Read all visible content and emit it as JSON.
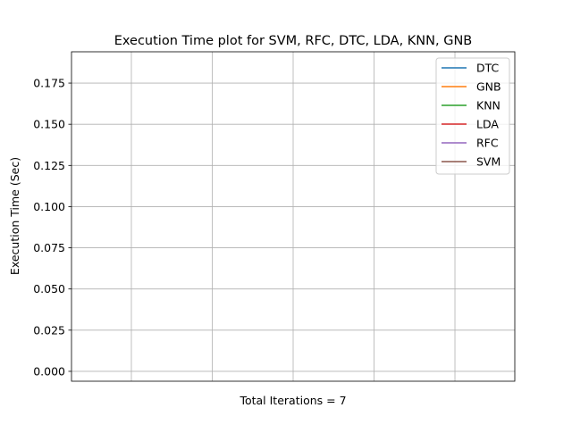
{
  "chart_data": {
    "type": "line",
    "title": "Execution Time plot for SVM, RFC, DTC, LDA, KNN, GNB",
    "xlabel": "Total Iterations = 7",
    "ylabel": "Execution Time (Sec)",
    "x_tick_labels": [],
    "y_ticks": [
      0.0,
      0.025,
      0.05,
      0.075,
      0.1,
      0.125,
      0.15,
      0.175
    ],
    "y_tick_labels": [
      "0.000",
      "0.025",
      "0.050",
      "0.075",
      "0.100",
      "0.125",
      "0.150",
      "0.175"
    ],
    "ylim": [
      -0.006,
      0.194
    ],
    "xlim": [
      -0.74,
      4.74
    ],
    "x_gridlines": [
      0,
      1,
      2,
      3,
      4
    ],
    "grid": true,
    "legend_position": "top-right",
    "series": [
      {
        "name": "DTC",
        "color": "#1f77b4",
        "x": [],
        "y": []
      },
      {
        "name": "GNB",
        "color": "#ff7f0e",
        "x": [],
        "y": []
      },
      {
        "name": "KNN",
        "color": "#2ca02c",
        "x": [],
        "y": []
      },
      {
        "name": "LDA",
        "color": "#d62728",
        "x": [],
        "y": []
      },
      {
        "name": "RFC",
        "color": "#9467bd",
        "x": [],
        "y": []
      },
      {
        "name": "SVM",
        "color": "#8c564b",
        "x": [],
        "y": []
      }
    ]
  }
}
